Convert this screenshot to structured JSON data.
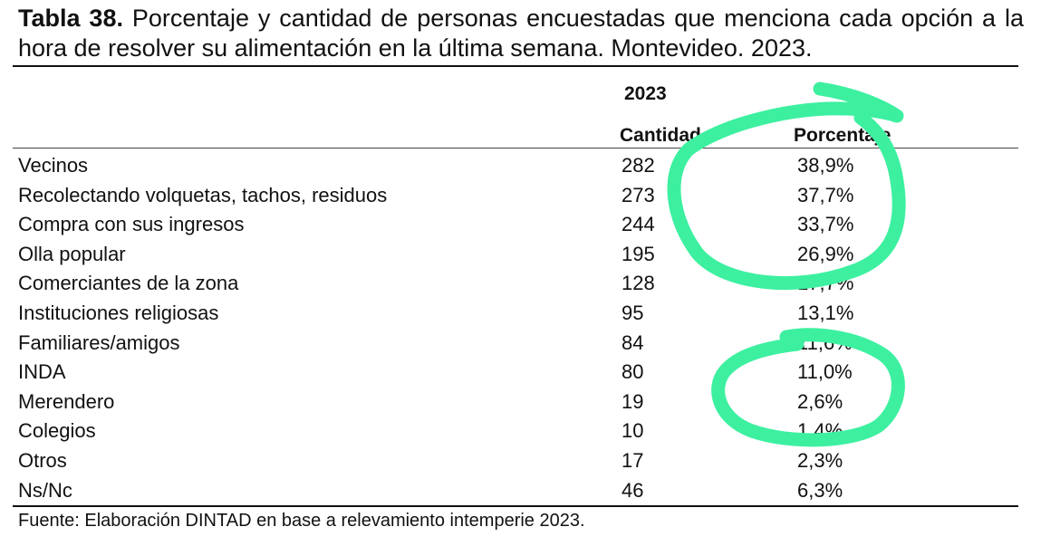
{
  "caption": {
    "bold": "Tabla 38.",
    "text": " Porcentaje y cantidad de personas encuestadas que menciona cada opción a la hora de resolver su alimentación en la última semana. Montevideo. 2023."
  },
  "table": {
    "year": "2023",
    "col_count": "Cantidad",
    "col_pct": "Porcentaje",
    "rows": [
      {
        "label": "Vecinos",
        "count": "282",
        "pct": "38,9%"
      },
      {
        "label": "Recolectando volquetas, tachos, residuos",
        "count": "273",
        "pct": "37,7%"
      },
      {
        "label": "Compra con sus ingresos",
        "count": "244",
        "pct": "33,7%"
      },
      {
        "label": "Olla popular",
        "count": "195",
        "pct": "26,9%"
      },
      {
        "label": "Comerciantes de la zona",
        "count": "128",
        "pct": "17,7%"
      },
      {
        "label": "Instituciones religiosas",
        "count": "95",
        "pct": "13,1%"
      },
      {
        "label": "Familiares/amigos",
        "count": "84",
        "pct": "11,6%"
      },
      {
        "label": "INDA",
        "count": "80",
        "pct": "11,0%"
      },
      {
        "label": "Merendero",
        "count": "19",
        "pct": "2,6%"
      },
      {
        "label": "Colegios",
        "count": "10",
        "pct": "1,4%"
      },
      {
        "label": "Otros",
        "count": "17",
        "pct": "2,3%"
      },
      {
        "label": "Ns/Nc",
        "count": "46",
        "pct": "6,3%"
      }
    ]
  },
  "source": "Fuente: Elaboración DINTAD en base a relevamiento intemperie 2023.",
  "colors": {
    "highlight_stroke": "#3df0a0",
    "text": "#111111"
  }
}
